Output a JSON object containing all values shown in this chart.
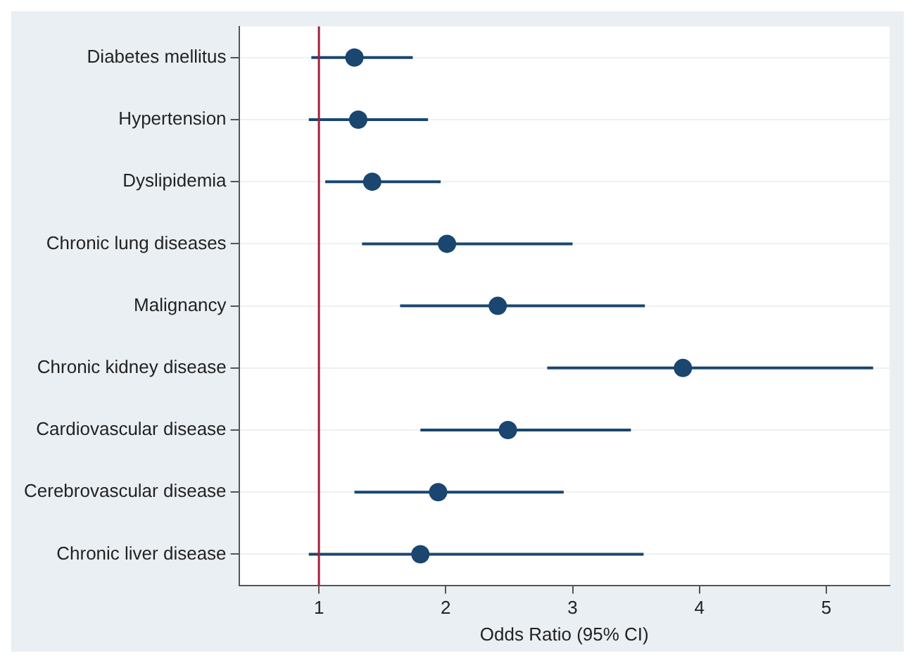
{
  "chart_data": {
    "type": "scatter",
    "orientation": "horizontal",
    "xlabel": "Odds Ratio (95% CI)",
    "categories": [
      "Diabetes mellitus",
      "Hypertension",
      "Dyslipidemia",
      "Chronic lung diseases",
      "Malignancy",
      "Chronic kidney disease",
      "Cardiovascular disease",
      "Cerebrovascular disease",
      "Chronic liver disease"
    ],
    "values": [
      1.28,
      1.31,
      1.42,
      2.01,
      2.41,
      3.87,
      2.49,
      1.94,
      1.8
    ],
    "errors": [
      [
        0.94,
        1.74
      ],
      [
        0.92,
        1.86
      ],
      [
        1.05,
        1.96
      ],
      [
        1.34,
        3.0
      ],
      [
        1.64,
        3.57
      ],
      [
        2.8,
        5.37
      ],
      [
        1.8,
        3.46
      ],
      [
        1.28,
        2.93
      ],
      [
        0.92,
        3.56
      ]
    ],
    "color": "#1a4670",
    "marker": "circle",
    "xlim": [
      0.37,
      5.5
    ],
    "xticks": [
      1,
      2,
      3,
      4,
      5
    ],
    "ref_lines": [
      {
        "axis": "x",
        "value": 1,
        "color": "#a3203c"
      }
    ],
    "grid": "y"
  }
}
